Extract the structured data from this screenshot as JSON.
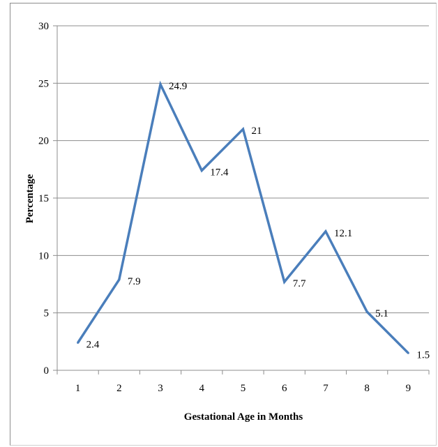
{
  "chart_data": {
    "type": "line",
    "title": "",
    "xlabel": "Gestational Age in Months",
    "ylabel": "Percentage",
    "categories": [
      "1",
      "2",
      "3",
      "4",
      "5",
      "6",
      "7",
      "8",
      "9"
    ],
    "series": [
      {
        "values": [
          2.4,
          7.9,
          24.9,
          17.4,
          21,
          7.7,
          12.1,
          5.1,
          1.5
        ],
        "data_labels": [
          "2.4",
          "7.9",
          "24.9",
          "17.4",
          "21",
          "7.7",
          "12.1",
          "5.1",
          "1.5"
        ],
        "color": "#4a7ebb"
      }
    ],
    "ylim": [
      0,
      30
    ],
    "yticks": [
      "0",
      "5",
      "10",
      "15",
      "20",
      "25",
      "30"
    ],
    "grid": true,
    "legend": "none"
  }
}
